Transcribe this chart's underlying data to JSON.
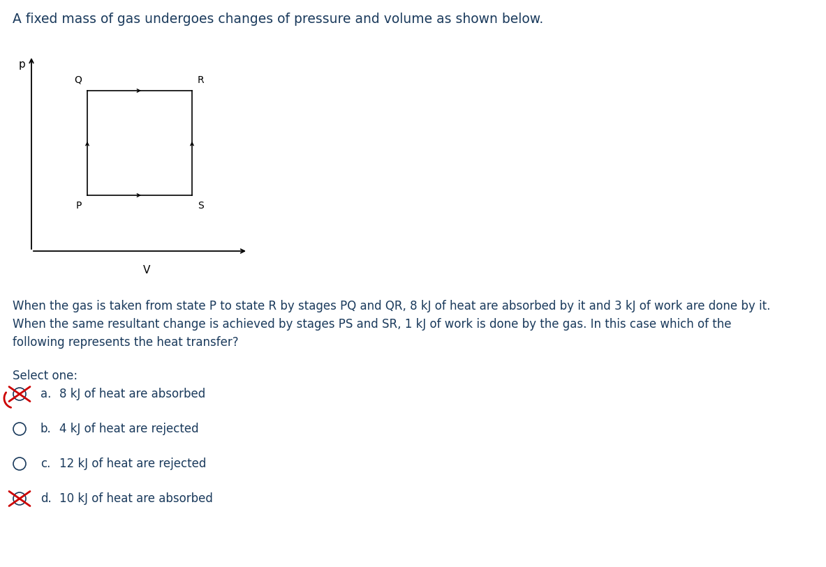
{
  "title": "A fixed mass of gas undergoes changes of pressure and volume as shown below.",
  "title_color": "#1a3a5c",
  "title_fontsize": 13.5,
  "bg_color": "#ffffff",
  "axis_label_p": "p",
  "axis_label_v": "V",
  "question_text_line1": "When the gas is taken from state P to state R by stages PQ and QR, 8 kJ of heat are absorbed by it and 3 kJ of work are done by it.",
  "question_text_line2": "When the same resultant change is achieved by stages PS and SR, 1 kJ of work is done by the gas. In this case which of the",
  "question_text_line3": "following represents the heat transfer?",
  "select_one_text": "Select one:",
  "options": [
    {
      "label": "a.",
      "text": "8 kJ of heat are absorbed",
      "crossed": true,
      "cross_style": "a"
    },
    {
      "label": "b.",
      "text": "4 kJ of heat are rejected",
      "crossed": false
    },
    {
      "label": "c.",
      "text": "12 kJ of heat are rejected",
      "crossed": false
    },
    {
      "label": "d.",
      "text": "10 kJ of heat are absorbed",
      "crossed": true,
      "cross_style": "d"
    }
  ],
  "option_text_color": "#1a3a5c",
  "question_text_color": "#1a3a5c",
  "cross_color": "#cc0000",
  "circle_color": "#1a3a5c"
}
